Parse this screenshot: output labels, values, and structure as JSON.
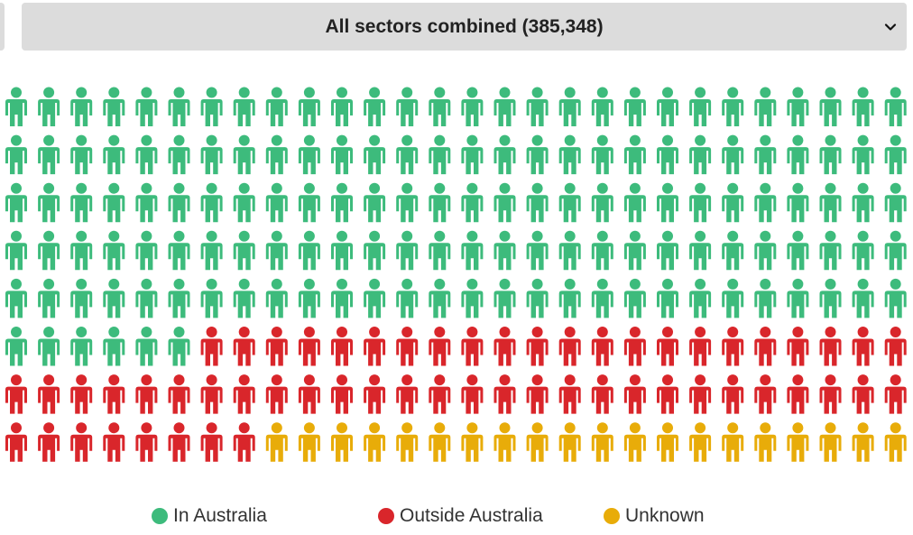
{
  "selector": {
    "label": "All sectors combined (385,348)",
    "icon": "chevron-down-icon"
  },
  "chart_data": {
    "type": "pictograph",
    "icon": "person-icon",
    "total_icons": 224,
    "rows": 8,
    "columns": 28,
    "categories": [
      {
        "name": "In Australia",
        "color": "#3dbb7c",
        "icons": 146
      },
      {
        "name": "Outside Australia",
        "color": "#d9262b",
        "icons": 58
      },
      {
        "name": "Unknown",
        "color": "#e8ac09",
        "icons": 20
      }
    ],
    "legend": {
      "position": "bottom"
    }
  },
  "legend": {
    "items": [
      {
        "label": "In Australia",
        "color": "#3dbb7c"
      },
      {
        "label": "Outside Australia",
        "color": "#d9262b"
      },
      {
        "label": "Unknown",
        "color": "#e8ac09"
      }
    ]
  }
}
